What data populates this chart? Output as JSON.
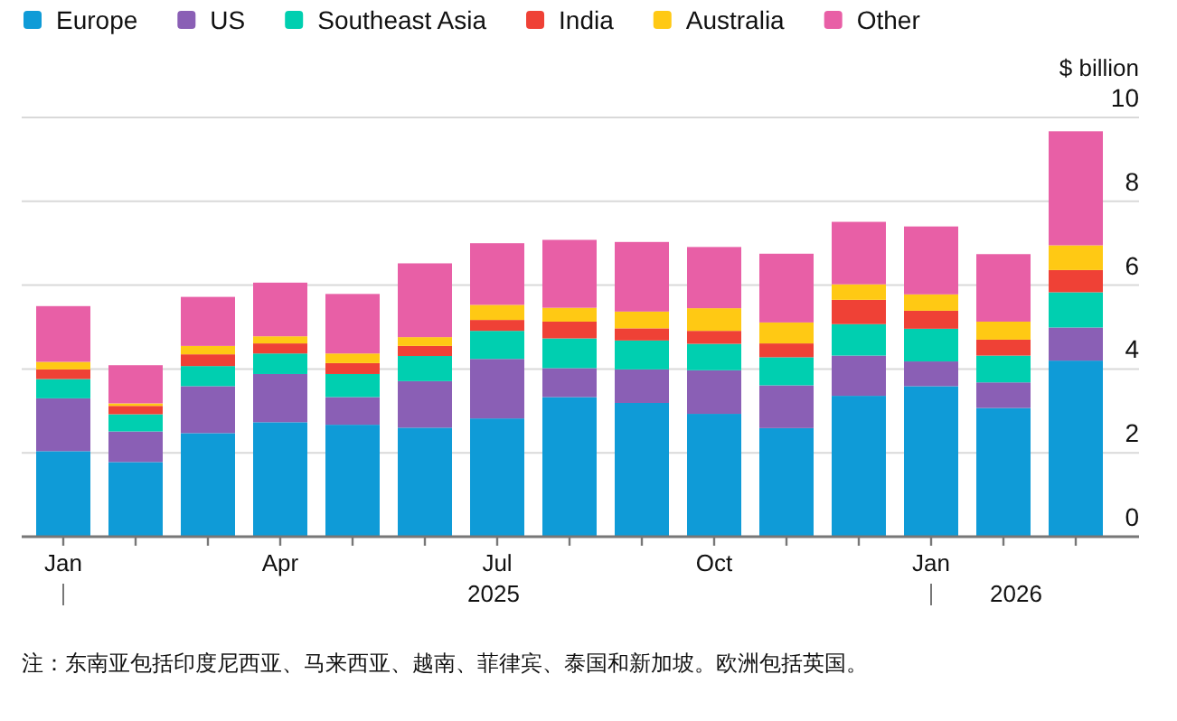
{
  "chart_data": {
    "type": "bar",
    "stacked": true,
    "ylabel": "$ billion",
    "categories": [
      "Jan",
      null,
      null,
      "Apr",
      null,
      null,
      "Jul",
      null,
      null,
      "Oct",
      null,
      null,
      "Jan",
      null,
      null
    ],
    "series": [
      {
        "name": "Europe",
        "color": "#0f9bd7",
        "values": [
          2.04,
          1.78,
          2.47,
          2.73,
          2.67,
          2.6,
          2.82,
          3.33,
          3.19,
          2.93,
          2.59,
          3.36,
          3.59,
          3.07,
          4.2
        ]
      },
      {
        "name": "US",
        "color": "#8a5fb5",
        "values": [
          1.26,
          0.73,
          1.12,
          1.15,
          0.66,
          1.11,
          1.42,
          0.69,
          0.8,
          1.04,
          1.02,
          0.96,
          0.59,
          0.61,
          0.79
        ]
      },
      {
        "name": "Southeast Asia",
        "color": "#00cfb0",
        "values": [
          0.46,
          0.41,
          0.48,
          0.49,
          0.55,
          0.6,
          0.67,
          0.71,
          0.69,
          0.63,
          0.67,
          0.75,
          0.78,
          0.64,
          0.84
        ]
      },
      {
        "name": "India",
        "color": "#ef4136",
        "values": [
          0.23,
          0.2,
          0.28,
          0.24,
          0.26,
          0.24,
          0.26,
          0.4,
          0.29,
          0.31,
          0.33,
          0.58,
          0.43,
          0.38,
          0.53
        ]
      },
      {
        "name": "Australia",
        "color": "#ffc914",
        "values": [
          0.18,
          0.06,
          0.2,
          0.17,
          0.23,
          0.21,
          0.36,
          0.33,
          0.4,
          0.54,
          0.5,
          0.37,
          0.39,
          0.43,
          0.59
        ]
      },
      {
        "name": "Other",
        "color": "#e85fa6",
        "values": [
          1.33,
          0.91,
          1.17,
          1.28,
          1.42,
          1.76,
          1.47,
          1.62,
          1.66,
          1.46,
          1.64,
          1.49,
          1.62,
          1.61,
          2.72
        ]
      }
    ],
    "ylim": [
      0,
      10
    ],
    "yticks": [
      0,
      2,
      4,
      6,
      8,
      10
    ],
    "grid": "y",
    "legend": "top left",
    "annotations": [
      "注：东南亚包括印度尼西亚、马来西亚、越南、菲律宾、泰国和新加坡。欧洲包括英国。",
      "2025",
      "2026"
    ]
  }
}
